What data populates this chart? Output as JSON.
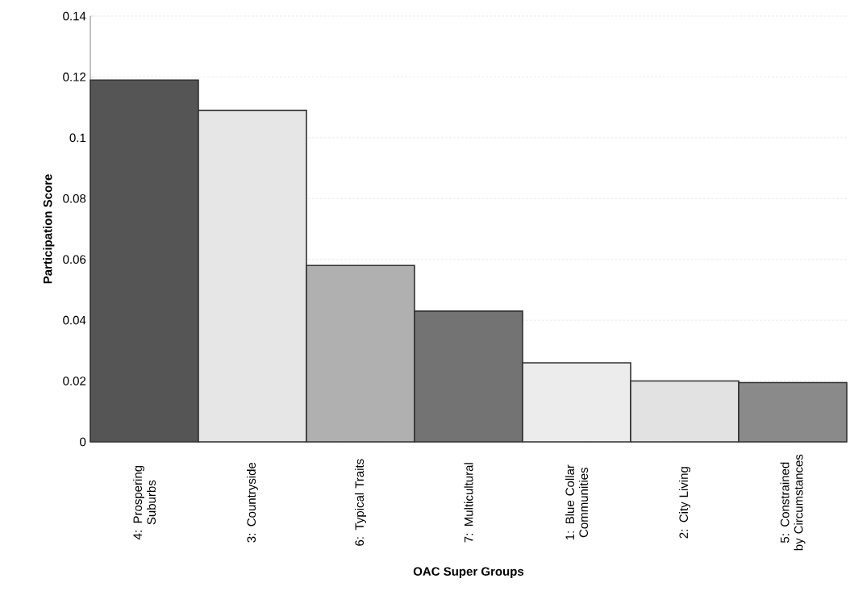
{
  "chart_data": {
    "type": "bar",
    "xlabel": "OAC Super Groups",
    "ylabel": "Participation Score",
    "categories": [
      "4: Prospering Suburbs",
      "3: Countryside",
      "6: Typical Traits",
      "7: Multicultural",
      "1: Blue Collar Communities",
      "2: City Living",
      "5: Constrained by Circumstances"
    ],
    "values": [
      0.119,
      0.109,
      0.058,
      0.043,
      0.026,
      0.02,
      0.0195
    ],
    "colors": [
      "#555555",
      "#e6e6e6",
      "#b0b0b0",
      "#737373",
      "#ececec",
      "#e2e2e2",
      "#8a8a8a"
    ],
    "ylim": [
      0,
      0.14
    ],
    "yticks": [
      0,
      0.02,
      0.04,
      0.06,
      0.08,
      0.1,
      0.12,
      0.14
    ],
    "grid": "y"
  }
}
